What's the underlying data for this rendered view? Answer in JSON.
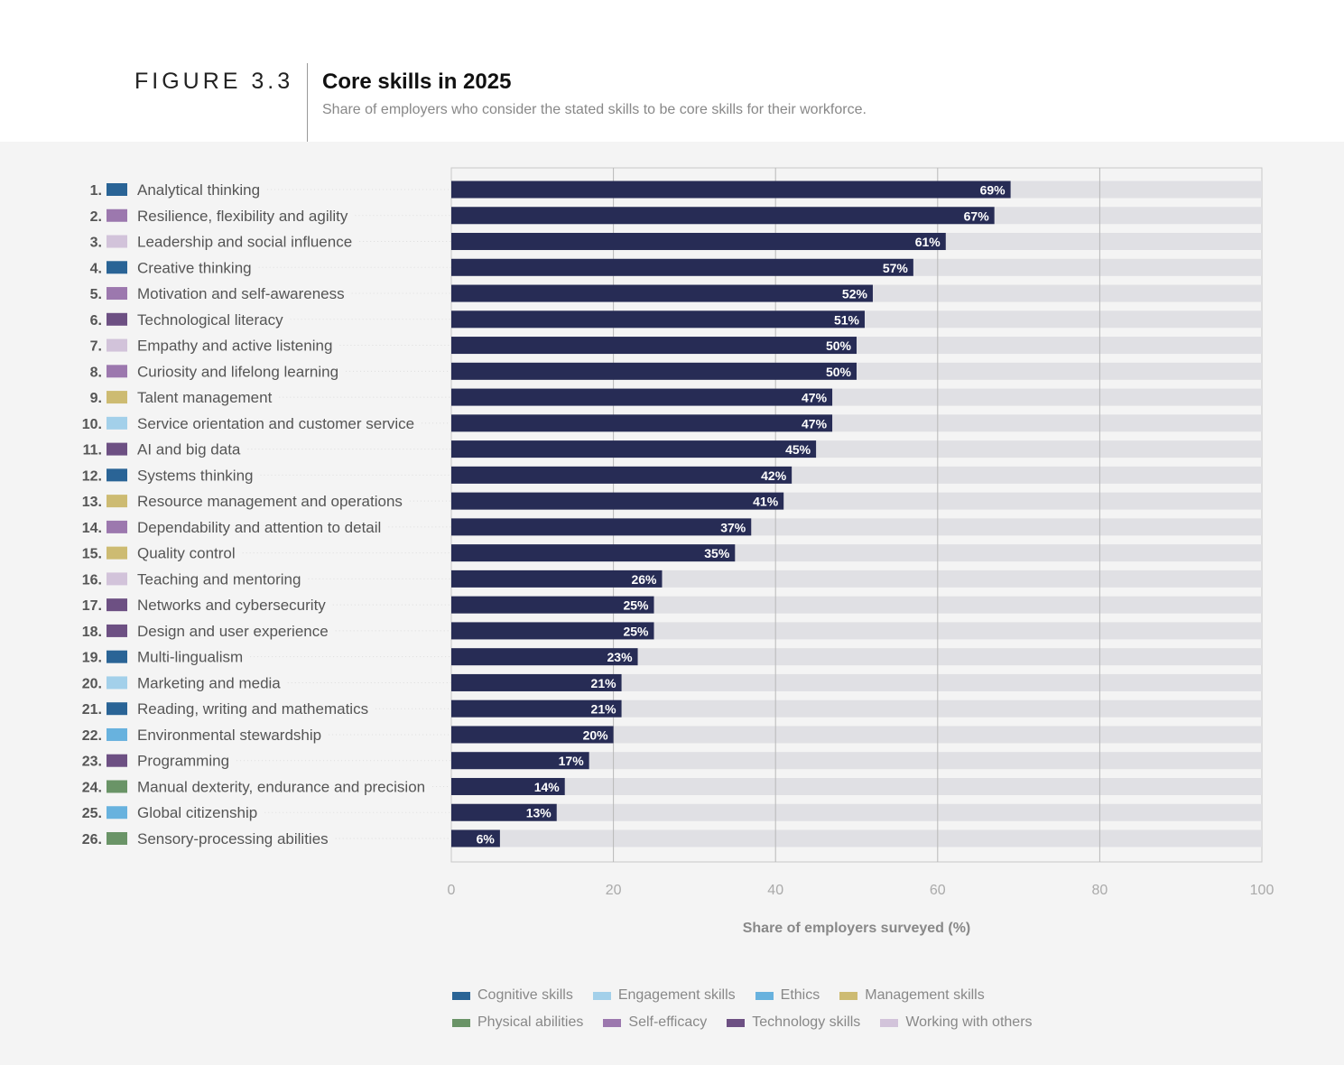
{
  "header": {
    "figure_label": "FIGURE 3.3",
    "title": "Core skills in 2025",
    "subtitle": "Share of employers who consider the stated skills to be core skills for their workforce."
  },
  "chart_data": {
    "type": "bar",
    "orientation": "horizontal",
    "xlabel": "Share of employers surveyed (%)",
    "xlim": [
      0,
      100
    ],
    "xticks": [
      "0",
      "20",
      "40",
      "60",
      "80",
      "100"
    ],
    "grid": true,
    "bar_color": "#272c55",
    "track_color": "#e0e0e4",
    "categories": [
      {
        "rank": "1.",
        "label": "Analytical thinking",
        "group": "cognitive",
        "value": 69,
        "value_label": "69%"
      },
      {
        "rank": "2.",
        "label": "Resilience, flexibility and agility",
        "group": "self",
        "value": 67,
        "value_label": "67%"
      },
      {
        "rank": "3.",
        "label": "Leadership and social influence",
        "group": "working",
        "value": 61,
        "value_label": "61%"
      },
      {
        "rank": "4.",
        "label": "Creative thinking",
        "group": "cognitive",
        "value": 57,
        "value_label": "57%"
      },
      {
        "rank": "5.",
        "label": "Motivation and self-awareness",
        "group": "self",
        "value": 52,
        "value_label": "52%"
      },
      {
        "rank": "6.",
        "label": "Technological literacy",
        "group": "technology",
        "value": 51,
        "value_label": "51%"
      },
      {
        "rank": "7.",
        "label": "Empathy and active listening",
        "group": "working",
        "value": 50,
        "value_label": "50%"
      },
      {
        "rank": "8.",
        "label": "Curiosity and lifelong learning",
        "group": "self",
        "value": 50,
        "value_label": "50%"
      },
      {
        "rank": "9.",
        "label": "Talent management",
        "group": "management",
        "value": 47,
        "value_label": "47%"
      },
      {
        "rank": "10.",
        "label": "Service orientation and customer service",
        "group": "engagement",
        "value": 47,
        "value_label": "47%"
      },
      {
        "rank": "11.",
        "label": "AI and big data",
        "group": "technology",
        "value": 45,
        "value_label": "45%"
      },
      {
        "rank": "12.",
        "label": "Systems thinking",
        "group": "cognitive",
        "value": 42,
        "value_label": "42%"
      },
      {
        "rank": "13.",
        "label": "Resource management and operations",
        "group": "management",
        "value": 41,
        "value_label": "41%"
      },
      {
        "rank": "14.",
        "label": "Dependability and attention to detail",
        "group": "self",
        "value": 37,
        "value_label": "37%"
      },
      {
        "rank": "15.",
        "label": "Quality control",
        "group": "management",
        "value": 35,
        "value_label": "35%"
      },
      {
        "rank": "16.",
        "label": "Teaching and mentoring",
        "group": "working",
        "value": 26,
        "value_label": "26%"
      },
      {
        "rank": "17.",
        "label": "Networks and cybersecurity",
        "group": "technology",
        "value": 25,
        "value_label": "25%"
      },
      {
        "rank": "18.",
        "label": "Design and user experience",
        "group": "technology",
        "value": 25,
        "value_label": "25%"
      },
      {
        "rank": "19.",
        "label": "Multi-lingualism",
        "group": "cognitive",
        "value": 23,
        "value_label": "23%"
      },
      {
        "rank": "20.",
        "label": "Marketing and media",
        "group": "engagement",
        "value": 21,
        "value_label": "21%"
      },
      {
        "rank": "21.",
        "label": "Reading, writing and mathematics",
        "group": "cognitive",
        "value": 21,
        "value_label": "21%"
      },
      {
        "rank": "22.",
        "label": "Environmental stewardship",
        "group": "ethics",
        "value": 20,
        "value_label": "20%"
      },
      {
        "rank": "23.",
        "label": "Programming",
        "group": "technology",
        "value": 17,
        "value_label": "17%"
      },
      {
        "rank": "24.",
        "label": "Manual dexterity, endurance and precision",
        "group": "physical",
        "value": 14,
        "value_label": "14%"
      },
      {
        "rank": "25.",
        "label": "Global citizenship",
        "group": "ethics",
        "value": 13,
        "value_label": "13%"
      },
      {
        "rank": "26.",
        "label": "Sensory-processing abilities",
        "group": "physical",
        "value": 6,
        "value_label": "6%"
      }
    ],
    "legend": [
      {
        "key": "cognitive",
        "label": "Cognitive skills",
        "color": "#2a6496"
      },
      {
        "key": "engagement",
        "label": "Engagement skills",
        "color": "#a3d0ea"
      },
      {
        "key": "ethics",
        "label": "Ethics",
        "color": "#68b2de"
      },
      {
        "key": "management",
        "label": "Management skills",
        "color": "#cdbb72"
      },
      {
        "key": "physical",
        "label": "Physical abilities",
        "color": "#6a9467"
      },
      {
        "key": "self",
        "label": "Self-efficacy",
        "color": "#9c78ae"
      },
      {
        "key": "technology",
        "label": "Technology skills",
        "color": "#6d5083"
      },
      {
        "key": "working",
        "label": "Working with others",
        "color": "#d2c3da"
      }
    ]
  }
}
